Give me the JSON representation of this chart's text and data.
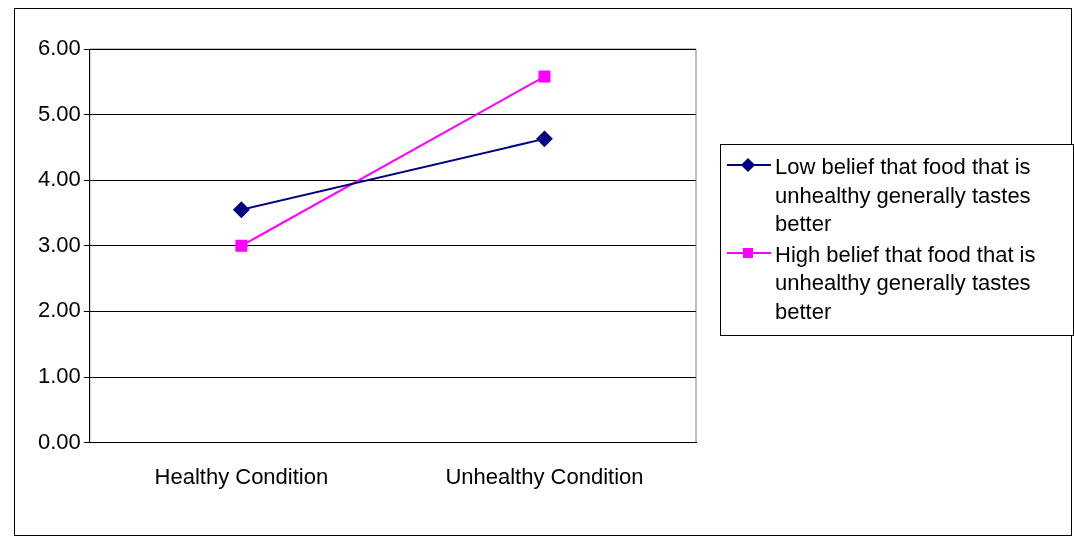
{
  "chart_data": {
    "type": "line",
    "categories": [
      "Healthy Condition",
      "Unhealthy Condition"
    ],
    "series": [
      {
        "name": "Low belief that food that is unhealthy generally tastes better",
        "color": "#000080",
        "values": [
          3.55,
          4.63
        ]
      },
      {
        "name": "High belief that food that is unhealthy generally tastes better",
        "color": "#ff00ff",
        "values": [
          3.0,
          5.58
        ]
      }
    ],
    "ylim": [
      0,
      6
    ],
    "yticks": [
      {
        "value": 0,
        "label": "0.00"
      },
      {
        "value": 1,
        "label": "1.00"
      },
      {
        "value": 2,
        "label": "2.00"
      },
      {
        "value": 3,
        "label": "3.00"
      },
      {
        "value": 4,
        "label": "4.00"
      },
      {
        "value": 5,
        "label": "5.00"
      },
      {
        "value": 6,
        "label": "6.00"
      }
    ],
    "grid": "y",
    "legend": "right",
    "marker": [
      "diamond",
      "square"
    ]
  }
}
